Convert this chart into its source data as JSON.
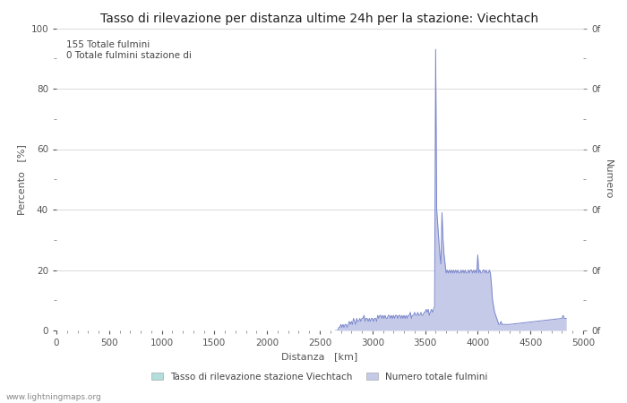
{
  "title": "Tasso di rilevazione per distanza ultime 24h per la stazione: Viechtach",
  "xlabel": "Distanza   [km]",
  "ylabel_left": "Percento   [%]",
  "ylabel_right": "Numero",
  "annotation_line1": "155 Totale fulmini",
  "annotation_line2": "0 Totale fulmini stazione di",
  "xlim": [
    0,
    5000
  ],
  "ylim": [
    0,
    100
  ],
  "xticks": [
    0,
    500,
    1000,
    1500,
    2000,
    2500,
    3000,
    3500,
    4000,
    4500,
    5000
  ],
  "yticks_left": [
    0,
    20,
    40,
    60,
    80,
    100
  ],
  "yticks_minor_left": [
    10,
    30,
    50,
    70,
    90
  ],
  "legend_label_green": "Tasso di rilevazione stazione Viechtach",
  "legend_label_blue": "Numero totale fulmini",
  "legend_color_green": "#b2dfdb",
  "legend_color_blue": "#c5cae9",
  "line_color": "#7986cb",
  "fill_color": "#c5cae9",
  "background_color": "#ffffff",
  "grid_color": "#cccccc",
  "watermark": "www.lightningmaps.org",
  "right_ytick_label": "0f",
  "title_fontsize": 10,
  "axis_label_fontsize": 8,
  "tick_fontsize": 7.5,
  "annotation_fontsize": 7.5,
  "x_data": [
    2650,
    2660,
    2670,
    2680,
    2690,
    2700,
    2710,
    2720,
    2730,
    2740,
    2750,
    2760,
    2770,
    2780,
    2790,
    2800,
    2810,
    2820,
    2830,
    2840,
    2850,
    2860,
    2870,
    2880,
    2890,
    2900,
    2910,
    2920,
    2930,
    2940,
    2950,
    2960,
    2970,
    2980,
    2990,
    3000,
    3010,
    3020,
    3030,
    3040,
    3050,
    3060,
    3070,
    3080,
    3090,
    3100,
    3110,
    3120,
    3130,
    3140,
    3150,
    3160,
    3170,
    3180,
    3190,
    3200,
    3210,
    3220,
    3230,
    3240,
    3250,
    3260,
    3270,
    3280,
    3290,
    3300,
    3310,
    3320,
    3330,
    3340,
    3350,
    3360,
    3370,
    3380,
    3390,
    3400,
    3410,
    3420,
    3430,
    3440,
    3450,
    3460,
    3470,
    3480,
    3490,
    3500,
    3510,
    3520,
    3530,
    3540,
    3550,
    3560,
    3570,
    3580,
    3590,
    3600,
    3610,
    3620,
    3630,
    3640,
    3650,
    3660,
    3670,
    3680,
    3690,
    3700,
    3710,
    3720,
    3730,
    3740,
    3750,
    3760,
    3770,
    3780,
    3790,
    3800,
    3810,
    3820,
    3830,
    3840,
    3850,
    3860,
    3870,
    3880,
    3890,
    3900,
    3910,
    3920,
    3930,
    3940,
    3950,
    3960,
    3970,
    3980,
    3990,
    4000,
    4010,
    4020,
    4030,
    4040,
    4050,
    4060,
    4070,
    4080,
    4090,
    4100,
    4110,
    4120,
    4130,
    4140,
    4150,
    4160,
    4170,
    4180,
    4190,
    4200,
    4210,
    4220,
    4230,
    4240,
    4250,
    4260,
    4270,
    4280,
    4290,
    4300,
    4800,
    4810,
    4820,
    4830,
    4840
  ],
  "y_data": [
    0,
    0,
    0,
    1,
    1,
    2,
    1,
    2,
    1,
    2,
    2,
    1,
    2,
    3,
    2,
    3,
    2,
    4,
    3,
    2,
    4,
    3,
    3,
    4,
    3,
    4,
    4,
    5,
    3,
    4,
    4,
    3,
    4,
    3,
    4,
    4,
    3,
    4,
    4,
    3,
    5,
    4,
    5,
    5,
    4,
    5,
    4,
    5,
    4,
    4,
    5,
    5,
    4,
    5,
    4,
    5,
    4,
    5,
    5,
    4,
    5,
    5,
    4,
    5,
    4,
    5,
    4,
    5,
    4,
    5,
    5,
    6,
    4,
    5,
    5,
    6,
    5,
    5,
    6,
    5,
    5,
    6,
    5,
    5,
    6,
    6,
    7,
    6,
    7,
    5,
    6,
    7,
    6,
    7,
    8,
    93,
    40,
    35,
    30,
    25,
    22,
    39,
    30,
    25,
    22,
    19,
    20,
    19,
    20,
    19,
    20,
    19,
    20,
    19,
    20,
    19,
    20,
    19,
    19,
    20,
    19,
    20,
    19,
    20,
    19,
    19,
    20,
    19,
    20,
    20,
    19,
    20,
    19,
    20,
    19,
    25,
    19,
    20,
    19,
    19,
    20,
    20,
    19,
    20,
    19,
    19,
    20,
    19,
    15,
    10,
    8,
    6,
    5,
    4,
    3,
    2,
    2,
    3,
    2,
    2,
    2,
    2,
    2,
    2,
    2,
    2,
    4,
    5,
    4,
    4,
    4
  ]
}
